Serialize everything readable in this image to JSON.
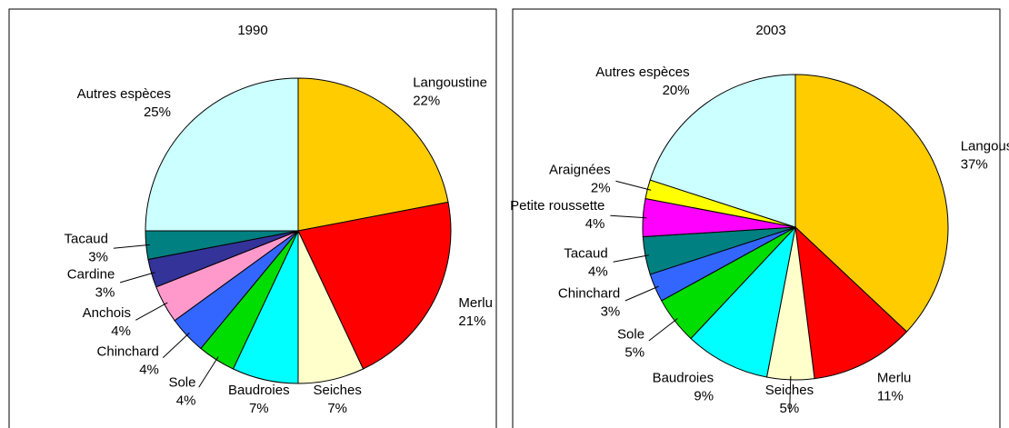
{
  "chart_data": [
    {
      "type": "pie",
      "title": "1990",
      "categories": [
        "Langoustine",
        "Merlu",
        "Seiches",
        "Baudroies",
        "Sole",
        "Chinchard",
        "Anchois",
        "Cardine",
        "Tacaud",
        "Autres espèces"
      ],
      "values": [
        22,
        21,
        7,
        7,
        4,
        4,
        4,
        3,
        3,
        25
      ],
      "value_labels": [
        "22%",
        "21%",
        "7%",
        "7%",
        "4%",
        "4%",
        "4%",
        "3%",
        "3%",
        "25%"
      ],
      "colors": [
        "#FFCC00",
        "#FF0000",
        "#FFFFCC",
        "#00FFFF",
        "#00DD00",
        "#3366FF",
        "#FF99CC",
        "#333399",
        "#008080",
        "#CCFFFF"
      ]
    },
    {
      "type": "pie",
      "title": "2003",
      "categories": [
        "Langoustine",
        "Merlu",
        "Seiches",
        "Baudroies",
        "Sole",
        "Chinchard",
        "Tacaud",
        "Petite roussette",
        "Araignées",
        "Autres espèces"
      ],
      "values": [
        37,
        11,
        5,
        9,
        5,
        3,
        4,
        4,
        2,
        20
      ],
      "value_labels": [
        "37%",
        "11%",
        "5%",
        "9%",
        "5%",
        "3%",
        "4%",
        "4%",
        "2%",
        "20%"
      ],
      "colors": [
        "#FFCC00",
        "#FF0000",
        "#FFFFCC",
        "#00FFFF",
        "#00DD00",
        "#3366FF",
        "#008080",
        "#FF00FF",
        "#FFFF00",
        "#CCFFFF"
      ]
    }
  ]
}
